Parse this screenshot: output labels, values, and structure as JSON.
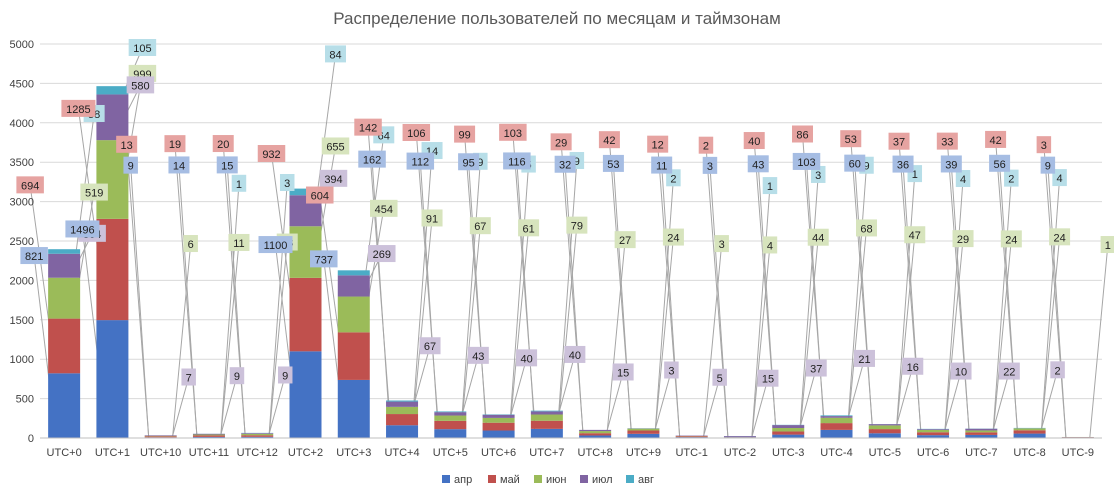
{
  "chart_data": {
    "type": "bar",
    "stacked": true,
    "title": "Распределение пользователей по месяцам и таймзонам",
    "xlabel": "",
    "ylabel": "",
    "ylim": [
      0,
      5000
    ],
    "yticks": [
      0,
      500,
      1000,
      1500,
      2000,
      2500,
      3000,
      3500,
      4000,
      4500,
      5000
    ],
    "grid": true,
    "legend_position": "bottom",
    "categories": [
      "UTC+0",
      "UTC+1",
      "UTC+10",
      "UTC+11",
      "UTC+12",
      "UTC+2",
      "UTC+3",
      "UTC+4",
      "UTC+5",
      "UTC+6",
      "UTC+7",
      "UTC+8",
      "UTC+9",
      "UTC-1",
      "UTC-2",
      "UTC-3",
      "UTC-4",
      "UTC-5",
      "UTC-6",
      "UTC-7",
      "UTC-8",
      "UTC-9"
    ],
    "series": [
      {
        "name": "апр",
        "color": "#4472c4",
        "label_bg": "#a6bde3",
        "values": [
          821,
          1496,
          9,
          14,
          15,
          1100,
          737,
          162,
          112,
          95,
          116,
          32,
          53,
          11,
          3,
          43,
          103,
          60,
          36,
          39,
          56,
          9
        ]
      },
      {
        "name": "май",
        "color": "#c0504d",
        "label_bg": "#e6a3a1",
        "values": [
          694,
          1285,
          13,
          19,
          20,
          932,
          604,
          142,
          106,
          99,
          103,
          29,
          42,
          12,
          2,
          40,
          86,
          53,
          37,
          33,
          42,
          3
        ]
      },
      {
        "name": "июн",
        "color": "#9bbb59",
        "label_bg": "#d7e4bd",
        "values": [
          519,
          999,
          6,
          11,
          18,
          655,
          454,
          91,
          67,
          61,
          79,
          27,
          24,
          3,
          4,
          44,
          68,
          47,
          29,
          24,
          24,
          1
        ]
      },
      {
        "name": "июл",
        "color": "#8064a2",
        "label_bg": "#ccc1da",
        "values": [
          304,
          580,
          7,
          9,
          9,
          394,
          269,
          67,
          43,
          40,
          40,
          15,
          3,
          5,
          15,
          37,
          21,
          16,
          10,
          22,
          2,
          0
        ]
      },
      {
        "name": "авг",
        "color": "#4bacc6",
        "label_bg": "#b7dee8",
        "values": [
          58,
          105,
          0,
          1,
          3,
          84,
          64,
          14,
          9,
          5,
          9,
          0,
          2,
          0,
          1,
          3,
          9,
          1,
          4,
          2,
          4,
          0
        ]
      }
    ]
  }
}
